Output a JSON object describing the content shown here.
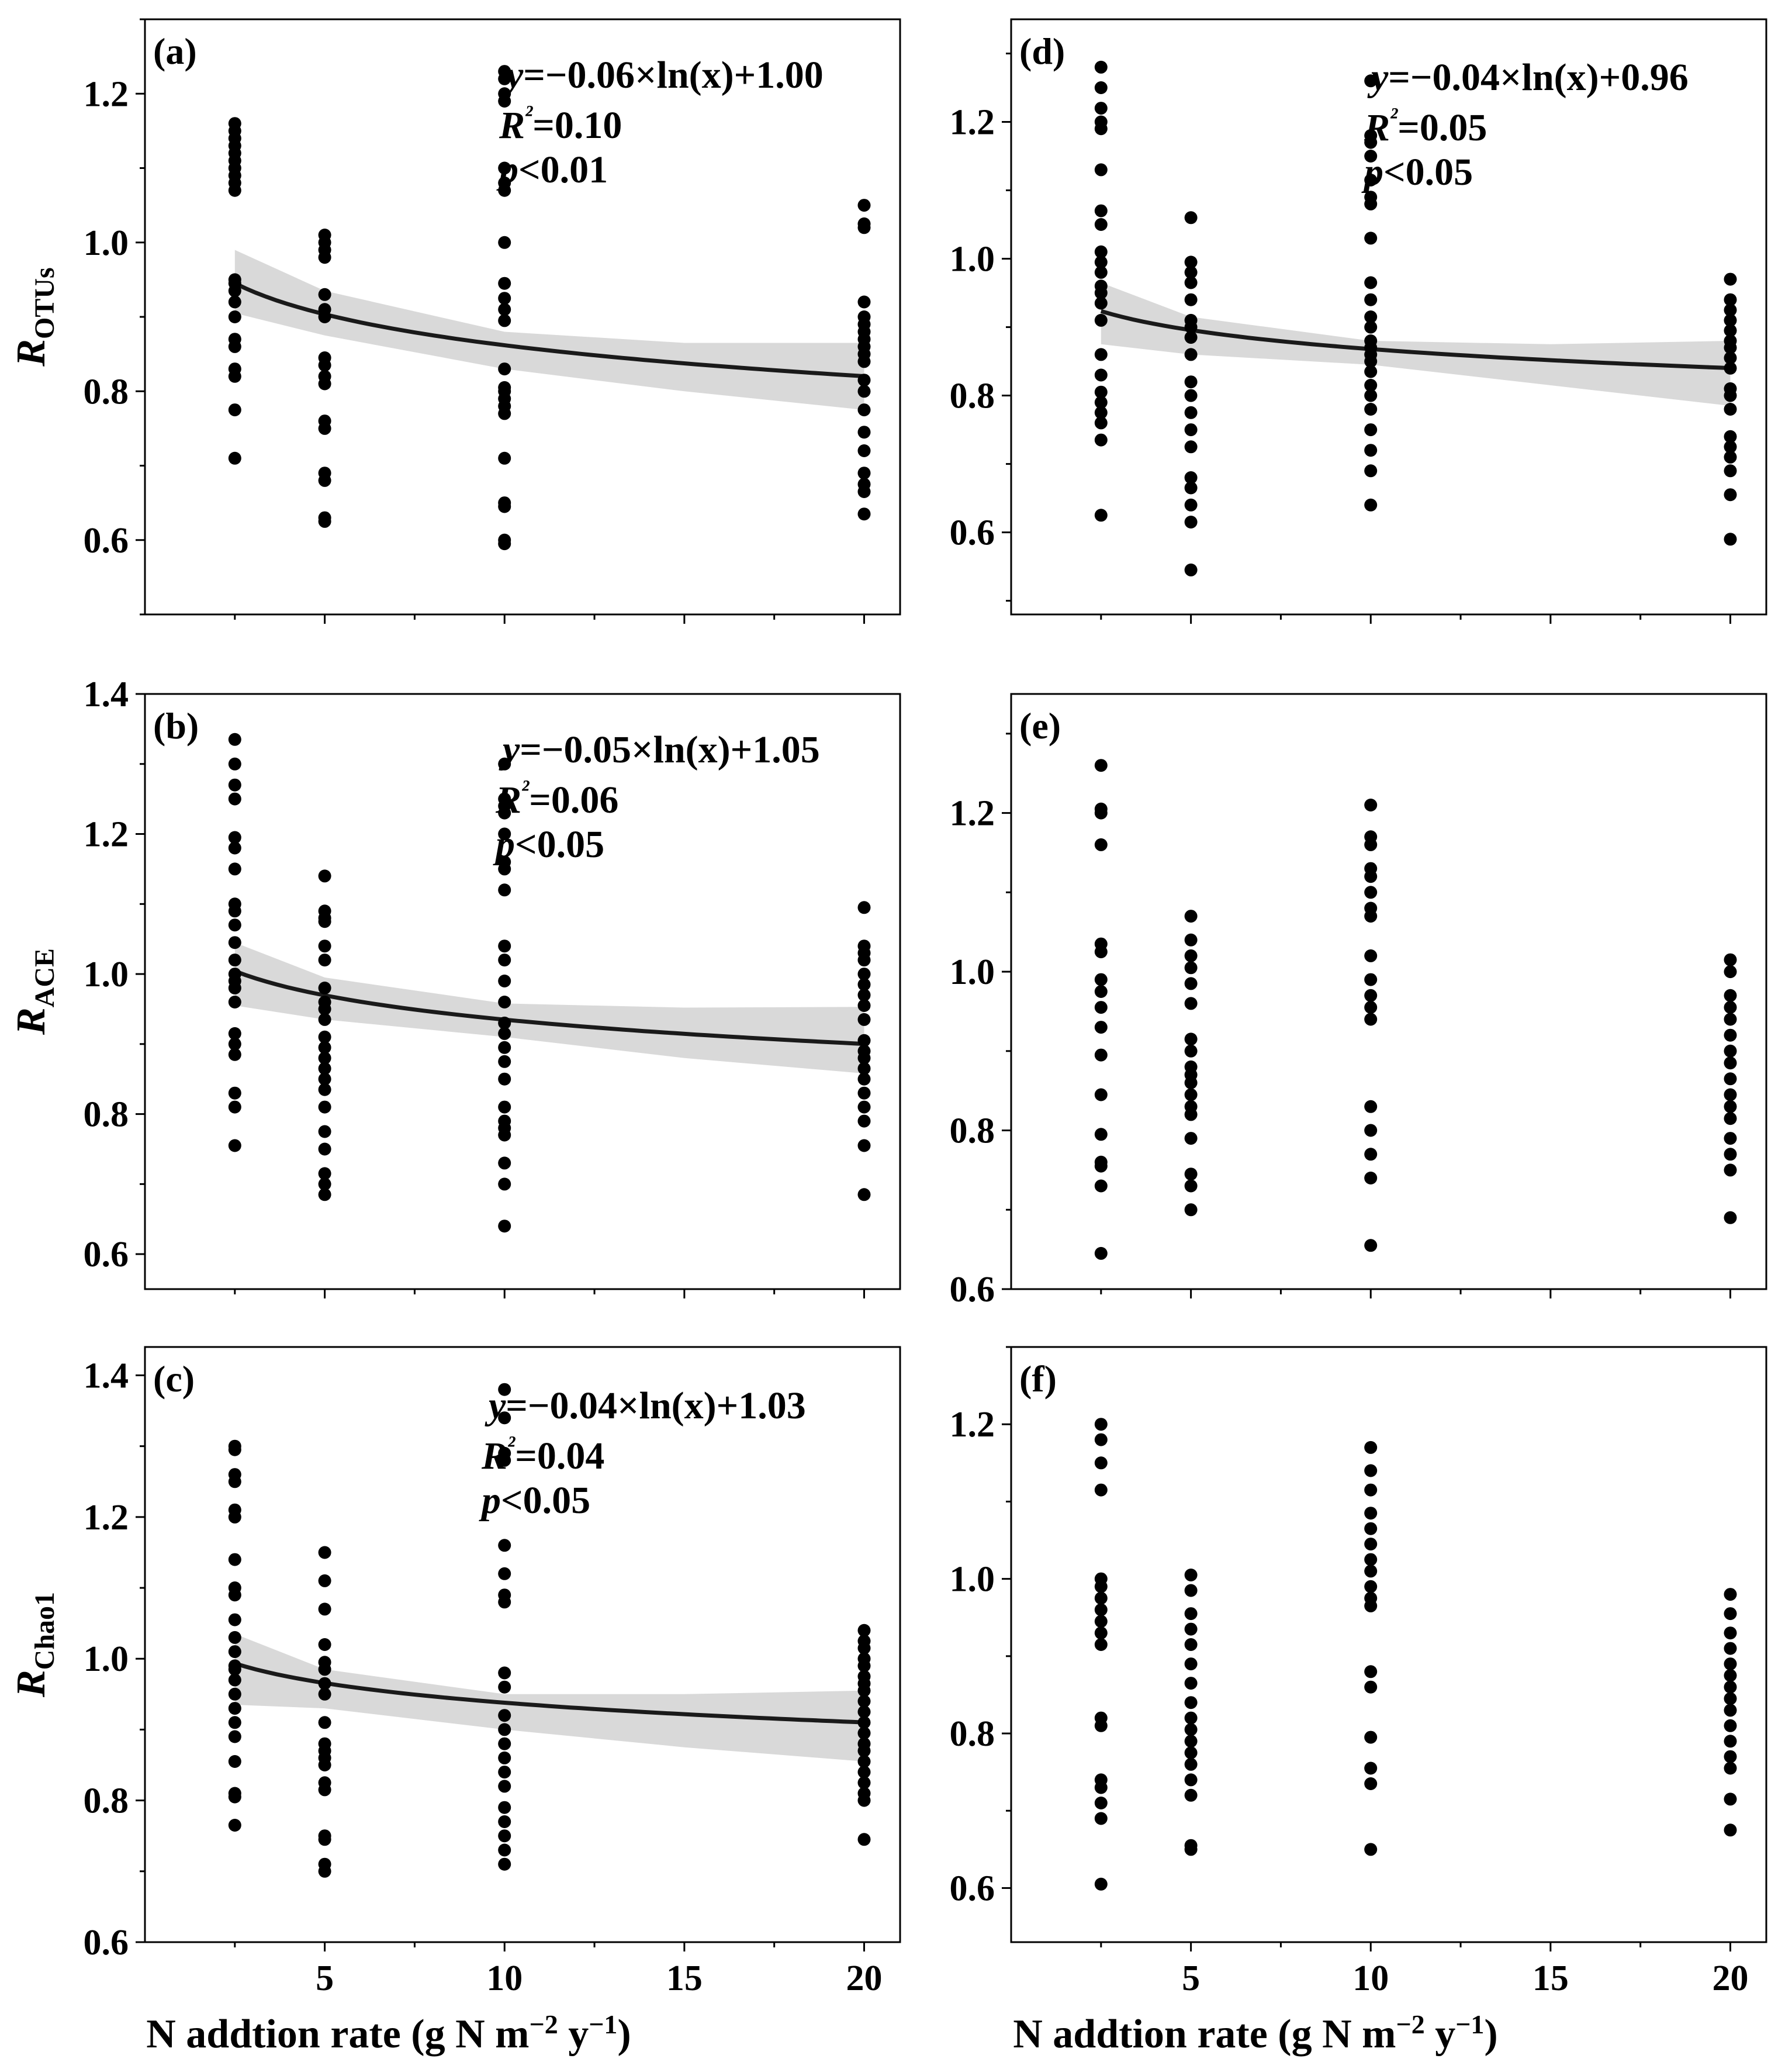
{
  "figure": {
    "x_axis_label_main": "N addtion rate (g N m",
    "x_axis_label_sup1": "−2",
    "x_axis_label_mid": " y",
    "x_axis_label_sup2": "−1",
    "x_axis_label_end": ")"
  },
  "chart_data": [
    {
      "id": "a",
      "label": "(a)",
      "type": "scatter",
      "ylabel_main": "R",
      "ylabel_sub": "OTUs",
      "ylim": [
        0.5,
        1.3
      ],
      "yticks": [
        0.6,
        0.8,
        1.0,
        1.2
      ],
      "ytick_labels": [
        "0.6",
        "0.8",
        "1.0",
        "1.2"
      ],
      "xlim": [
        0,
        21
      ],
      "xticks": [
        5,
        10,
        15,
        20
      ],
      "xtick_labels": [
        "5",
        "10",
        "15",
        "20"
      ],
      "equation": "y=−0.06×ln(x)+1.00",
      "r2": "R²=0.10",
      "p": "p<0.01",
      "fit": {
        "a": -0.06,
        "b": 1.0,
        "x_start": 2.5,
        "x_end": 20,
        "ci_upper": [
          [
            2.5,
            0.99
          ],
          [
            5,
            0.935
          ],
          [
            10,
            0.88
          ],
          [
            15,
            0.865
          ],
          [
            20,
            0.865
          ]
        ],
        "ci_lower": [
          [
            2.5,
            0.905
          ],
          [
            5,
            0.875
          ],
          [
            10,
            0.83
          ],
          [
            15,
            0.8
          ],
          [
            20,
            0.775
          ]
        ]
      },
      "groups": [
        {
          "x": 2.5,
          "y": [
            0.71,
            0.775,
            0.82,
            0.83,
            0.86,
            0.87,
            0.9,
            0.92,
            0.935,
            0.945,
            0.95,
            1.07,
            1.08,
            1.09,
            1.1,
            1.11,
            1.12,
            1.13,
            1.14,
            1.15,
            1.16
          ]
        },
        {
          "x": 5,
          "y": [
            0.625,
            0.63,
            0.68,
            0.69,
            0.75,
            0.76,
            0.81,
            0.82,
            0.835,
            0.845,
            0.9,
            0.91,
            0.93,
            0.98,
            0.99,
            1.0,
            1.01
          ]
        },
        {
          "x": 10,
          "y": [
            0.595,
            0.6,
            0.645,
            0.65,
            0.71,
            0.77,
            0.78,
            0.79,
            0.8,
            0.805,
            0.83,
            0.895,
            0.91,
            0.925,
            0.945,
            1.0,
            1.07,
            1.08,
            1.1,
            1.19,
            1.2,
            1.22,
            1.23
          ]
        },
        {
          "x": 20,
          "y": [
            0.635,
            0.665,
            0.675,
            0.69,
            0.72,
            0.745,
            0.775,
            0.8,
            0.815,
            0.84,
            0.85,
            0.86,
            0.87,
            0.88,
            0.89,
            0.9,
            0.92,
            1.02,
            1.025,
            1.05
          ]
        }
      ]
    },
    {
      "id": "b",
      "label": "(b)",
      "type": "scatter",
      "ylabel_main": "R",
      "ylabel_sub": "ACE",
      "ylim": [
        0.55,
        1.4
      ],
      "yticks": [
        0.6,
        0.8,
        1.0,
        1.2,
        1.4
      ],
      "ytick_labels": [
        "0.6",
        "0.8",
        "1.0",
        "1.2",
        "1.4"
      ],
      "xlim": [
        0,
        21
      ],
      "xticks": [
        5,
        10,
        15,
        20
      ],
      "xtick_labels": [
        "5",
        "10",
        "15",
        "20"
      ],
      "equation": "y=−0.05×ln(x)+1.05",
      "r2": "R²=0.06",
      "p": "p<0.05",
      "fit": {
        "a": -0.05,
        "b": 1.05,
        "x_start": 2.5,
        "x_end": 20,
        "ci_upper": [
          [
            2.5,
            1.045
          ],
          [
            5,
            0.995
          ],
          [
            10,
            0.958
          ],
          [
            15,
            0.952
          ],
          [
            20,
            0.953
          ]
        ],
        "ci_lower": [
          [
            2.5,
            0.955
          ],
          [
            5,
            0.935
          ],
          [
            10,
            0.91
          ],
          [
            15,
            0.88
          ],
          [
            20,
            0.858
          ]
        ]
      },
      "groups": [
        {
          "x": 2.5,
          "y": [
            0.755,
            0.81,
            0.83,
            0.885,
            0.9,
            0.915,
            0.96,
            0.98,
            0.99,
            1.0,
            1.02,
            1.045,
            1.07,
            1.09,
            1.1,
            1.15,
            1.18,
            1.195,
            1.25,
            1.27,
            1.3,
            1.335
          ]
        },
        {
          "x": 5,
          "y": [
            0.685,
            0.7,
            0.715,
            0.75,
            0.775,
            0.81,
            0.835,
            0.85,
            0.865,
            0.88,
            0.895,
            0.91,
            0.935,
            0.95,
            0.96,
            0.98,
            1.02,
            1.04,
            1.075,
            1.08,
            1.09,
            1.14
          ]
        },
        {
          "x": 10,
          "y": [
            0.64,
            0.7,
            0.73,
            0.77,
            0.78,
            0.79,
            0.81,
            0.85,
            0.875,
            0.895,
            0.915,
            0.93,
            0.96,
            0.99,
            1.02,
            1.04,
            1.12,
            1.15,
            1.16,
            1.2,
            1.23,
            1.24,
            1.25,
            1.3
          ]
        },
        {
          "x": 20,
          "y": [
            0.685,
            0.755,
            0.79,
            0.81,
            0.83,
            0.85,
            0.865,
            0.88,
            0.89,
            0.905,
            0.935,
            0.955,
            0.97,
            0.985,
            1.0,
            1.02,
            1.03,
            1.04,
            1.095
          ]
        }
      ]
    },
    {
      "id": "c",
      "label": "(c)",
      "type": "scatter",
      "ylabel_main": "R",
      "ylabel_sub": "Chao1",
      "ylim": [
        0.6,
        1.44
      ],
      "yticks": [
        0.6,
        0.8,
        1.0,
        1.2,
        1.4
      ],
      "ytick_labels": [
        "0.6",
        "0.8",
        "1.0",
        "1.2",
        "1.4"
      ],
      "xlim": [
        0,
        21
      ],
      "xticks": [
        5,
        10,
        15,
        20
      ],
      "xtick_labels": [
        "5",
        "10",
        "15",
        "20"
      ],
      "equation": "y=−0.04×ln(x)+1.03",
      "r2": "R²=0.04",
      "p": "p<0.05",
      "fit": {
        "a": -0.04,
        "b": 1.03,
        "x_start": 2.5,
        "x_end": 20,
        "ci_upper": [
          [
            2.5,
            1.035
          ],
          [
            5,
            0.985
          ],
          [
            10,
            0.95
          ],
          [
            15,
            0.95
          ],
          [
            20,
            0.955
          ]
        ],
        "ci_lower": [
          [
            2.5,
            0.935
          ],
          [
            5,
            0.93
          ],
          [
            10,
            0.9
          ],
          [
            15,
            0.875
          ],
          [
            20,
            0.855
          ]
        ]
      },
      "groups": [
        {
          "x": 2.5,
          "y": [
            0.765,
            0.805,
            0.81,
            0.855,
            0.89,
            0.91,
            0.93,
            0.95,
            0.97,
            0.985,
            0.99,
            1.01,
            1.03,
            1.055,
            1.09,
            1.1,
            1.14,
            1.2,
            1.21,
            1.25,
            1.26,
            1.295,
            1.3
          ]
        },
        {
          "x": 5,
          "y": [
            0.7,
            0.71,
            0.745,
            0.75,
            0.815,
            0.825,
            0.85,
            0.86,
            0.87,
            0.88,
            0.91,
            0.95,
            0.965,
            0.985,
            0.995,
            1.02,
            1.07,
            1.11,
            1.15
          ]
        },
        {
          "x": 10,
          "y": [
            0.71,
            0.73,
            0.75,
            0.77,
            0.79,
            0.82,
            0.84,
            0.86,
            0.88,
            0.9,
            0.92,
            0.96,
            0.98,
            1.08,
            1.09,
            1.12,
            1.16,
            1.28,
            1.29,
            1.34,
            1.38
          ]
        },
        {
          "x": 20,
          "y": [
            0.745,
            0.8,
            0.81,
            0.825,
            0.84,
            0.855,
            0.87,
            0.88,
            0.895,
            0.91,
            0.925,
            0.94,
            0.955,
            0.965,
            0.975,
            0.99,
            1.0,
            1.015,
            1.025,
            1.04
          ]
        }
      ]
    },
    {
      "id": "d",
      "label": "(d)",
      "type": "scatter",
      "ylabel_main": "",
      "ylabel_sub": "",
      "ylim": [
        0.48,
        1.35
      ],
      "yticks": [
        0.6,
        0.8,
        1.0,
        1.2
      ],
      "ytick_labels": [
        "0.6",
        "0.8",
        "1.0",
        "1.2"
      ],
      "xlim": [
        0,
        21
      ],
      "xticks": [
        5,
        10,
        15,
        20
      ],
      "xtick_labels": [
        "5",
        "10",
        "15",
        "20"
      ],
      "equation": "y=−0.04×ln(x)+0.96",
      "r2": "R²=0.05",
      "p": "p<0.05",
      "fit": {
        "a": -0.04,
        "b": 0.96,
        "x_start": 2.5,
        "x_end": 20,
        "ci_upper": [
          [
            2.5,
            0.965
          ],
          [
            5,
            0.915
          ],
          [
            10,
            0.88
          ],
          [
            15,
            0.875
          ],
          [
            20,
            0.88
          ]
        ],
        "ci_lower": [
          [
            2.5,
            0.875
          ],
          [
            5,
            0.86
          ],
          [
            10,
            0.845
          ],
          [
            15,
            0.815
          ],
          [
            20,
            0.785
          ]
        ]
      },
      "groups": [
        {
          "x": 2.5,
          "y": [
            0.625,
            0.735,
            0.76,
            0.775,
            0.79,
            0.805,
            0.83,
            0.86,
            0.91,
            0.935,
            0.95,
            0.96,
            0.98,
            0.995,
            1.01,
            1.05,
            1.07,
            1.13,
            1.19,
            1.2,
            1.22,
            1.25,
            1.28
          ]
        },
        {
          "x": 5,
          "y": [
            0.545,
            0.615,
            0.64,
            0.665,
            0.68,
            0.725,
            0.75,
            0.775,
            0.8,
            0.82,
            0.86,
            0.885,
            0.9,
            0.91,
            0.94,
            0.965,
            0.98,
            0.995,
            1.06
          ]
        },
        {
          "x": 10,
          "y": [
            0.64,
            0.69,
            0.72,
            0.75,
            0.78,
            0.8,
            0.815,
            0.835,
            0.85,
            0.86,
            0.87,
            0.88,
            0.9,
            0.915,
            0.94,
            0.965,
            1.03,
            1.08,
            1.09,
            1.115,
            1.15,
            1.17,
            1.18,
            1.26
          ]
        },
        {
          "x": 20,
          "y": [
            0.59,
            0.655,
            0.69,
            0.71,
            0.725,
            0.74,
            0.78,
            0.8,
            0.81,
            0.84,
            0.855,
            0.87,
            0.88,
            0.895,
            0.91,
            0.925,
            0.94,
            0.97
          ]
        }
      ]
    },
    {
      "id": "e",
      "label": "(e)",
      "type": "scatter",
      "ylabel_main": "",
      "ylabel_sub": "",
      "ylim": [
        0.6,
        1.35
      ],
      "yticks": [
        0.6,
        0.8,
        1.0,
        1.2
      ],
      "ytick_labels": [
        "0.6",
        "0.8",
        "1.0",
        "1.2"
      ],
      "xlim": [
        0,
        21
      ],
      "xticks": [
        5,
        10,
        15,
        20
      ],
      "xtick_labels": [
        "5",
        "10",
        "15",
        "20"
      ],
      "equation": "",
      "r2": "",
      "p": "",
      "fit": null,
      "groups": [
        {
          "x": 2.5,
          "y": [
            0.645,
            0.73,
            0.755,
            0.76,
            0.795,
            0.845,
            0.895,
            0.93,
            0.955,
            0.975,
            0.99,
            1.025,
            1.035,
            1.16,
            1.2,
            1.205,
            1.26
          ]
        },
        {
          "x": 5,
          "y": [
            0.7,
            0.73,
            0.745,
            0.79,
            0.82,
            0.83,
            0.845,
            0.86,
            0.87,
            0.88,
            0.9,
            0.915,
            0.96,
            0.985,
            1.005,
            1.02,
            1.04,
            1.07
          ]
        },
        {
          "x": 10,
          "y": [
            0.655,
            0.74,
            0.77,
            0.8,
            0.83,
            0.94,
            0.955,
            0.97,
            0.99,
            1.02,
            1.07,
            1.08,
            1.1,
            1.12,
            1.13,
            1.16,
            1.17,
            1.21
          ]
        },
        {
          "x": 20,
          "y": [
            0.69,
            0.75,
            0.77,
            0.79,
            0.815,
            0.83,
            0.845,
            0.865,
            0.885,
            0.9,
            0.92,
            0.94,
            0.955,
            0.97,
            1.0,
            1.015
          ]
        }
      ]
    },
    {
      "id": "f",
      "label": "(f)",
      "type": "scatter",
      "ylabel_main": "",
      "ylabel_sub": "",
      "ylim": [
        0.53,
        1.3
      ],
      "yticks": [
        0.6,
        0.8,
        1.0,
        1.2
      ],
      "ytick_labels": [
        "0.6",
        "0.8",
        "1.0",
        "1.2"
      ],
      "xlim": [
        0,
        21
      ],
      "xticks": [
        5,
        10,
        15,
        20
      ],
      "xtick_labels": [
        "5",
        "10",
        "15",
        "20"
      ],
      "equation": "",
      "r2": "",
      "p": "",
      "fit": null,
      "groups": [
        {
          "x": 2.5,
          "y": [
            0.605,
            0.69,
            0.71,
            0.73,
            0.74,
            0.81,
            0.82,
            0.915,
            0.93,
            0.945,
            0.96,
            0.975,
            0.99,
            1.0,
            1.115,
            1.15,
            1.18,
            1.2
          ]
        },
        {
          "x": 5,
          "y": [
            0.65,
            0.655,
            0.72,
            0.74,
            0.76,
            0.775,
            0.79,
            0.805,
            0.82,
            0.84,
            0.865,
            0.89,
            0.915,
            0.935,
            0.955,
            0.985,
            1.005
          ]
        },
        {
          "x": 10,
          "y": [
            0.65,
            0.735,
            0.755,
            0.795,
            0.86,
            0.88,
            0.965,
            0.975,
            0.99,
            1.01,
            1.025,
            1.045,
            1.065,
            1.085,
            1.115,
            1.14,
            1.17
          ]
        },
        {
          "x": 20,
          "y": [
            0.675,
            0.715,
            0.755,
            0.77,
            0.79,
            0.81,
            0.83,
            0.845,
            0.86,
            0.875,
            0.89,
            0.91,
            0.93,
            0.955,
            0.98
          ]
        }
      ]
    }
  ]
}
